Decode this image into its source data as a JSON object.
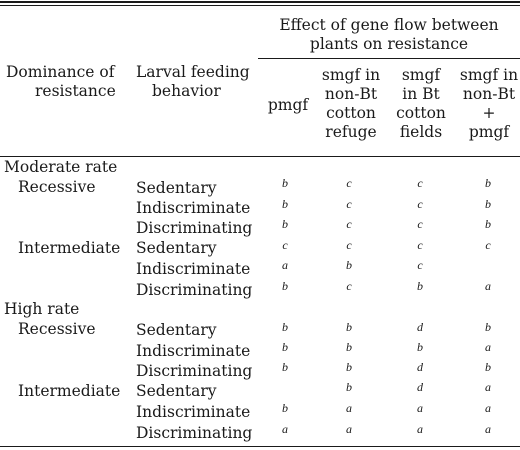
{
  "header": {
    "effect_group": [
      "Effect of gene flow between",
      "plants on resistance"
    ],
    "dominance": [
      "Dominance of",
      "resistance"
    ],
    "feeding": [
      "Larval feeding",
      "behavior"
    ],
    "columns": [
      [
        "pmgf"
      ],
      [
        "smgf in",
        "non-Bt",
        "cotton",
        "refuge"
      ],
      [
        "smgf",
        "in Bt",
        "cotton",
        "fields"
      ],
      [
        "smgf in",
        "non-Bt",
        "+",
        "pmgf"
      ]
    ]
  },
  "sections": [
    {
      "title": "Moderate rate",
      "groups": [
        {
          "dominance": "Recessive",
          "rows": [
            {
              "behavior": "Sedentary",
              "values": [
                "b",
                "c",
                "c",
                "b"
              ]
            },
            {
              "behavior": "Indiscriminate",
              "values": [
                "b",
                "c",
                "c",
                "b"
              ]
            },
            {
              "behavior": "Discriminating",
              "values": [
                "b",
                "c",
                "c",
                "b"
              ]
            }
          ]
        },
        {
          "dominance": "Intermediate",
          "rows": [
            {
              "behavior": "Sedentary",
              "values": [
                "c",
                "c",
                "c",
                "c"
              ]
            },
            {
              "behavior": "Indiscriminate",
              "values": [
                "a",
                "b",
                "c",
                ""
              ]
            },
            {
              "behavior": "Discriminating",
              "values": [
                "b",
                "c",
                "b",
                "a"
              ]
            }
          ]
        }
      ]
    },
    {
      "title": "High rate",
      "groups": [
        {
          "dominance": "Recessive",
          "rows": [
            {
              "behavior": "Sedentary",
              "values": [
                "b",
                "b",
                "d",
                "b"
              ]
            },
            {
              "behavior": "Indiscriminate",
              "values": [
                "b",
                "b",
                "b",
                "a"
              ]
            },
            {
              "behavior": "Discriminating",
              "values": [
                "b",
                "b",
                "d",
                "b"
              ]
            }
          ]
        },
        {
          "dominance": "Intermediate",
          "rows": [
            {
              "behavior": "Sedentary",
              "values": [
                "",
                "b",
                "d",
                "a"
              ]
            },
            {
              "behavior": "Indiscriminate",
              "values": [
                "b",
                "a",
                "a",
                "a"
              ]
            },
            {
              "behavior": "Discriminating",
              "values": [
                "a",
                "a",
                "a",
                "a"
              ]
            }
          ]
        }
      ]
    }
  ]
}
